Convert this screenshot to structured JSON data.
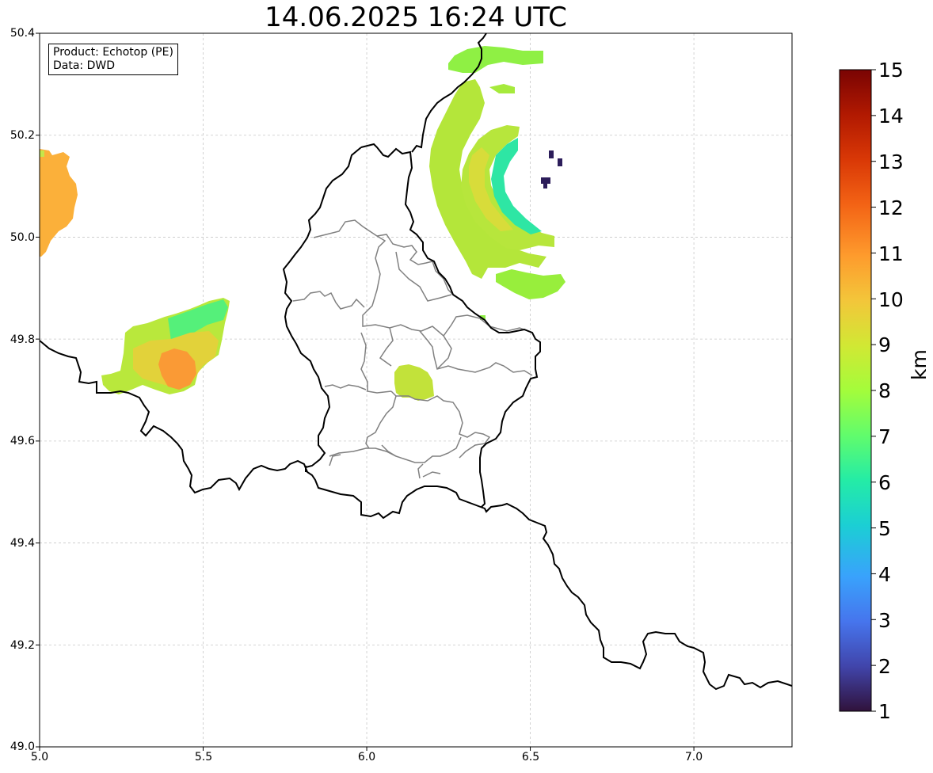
{
  "title": "14.06.2025 16:24 UTC",
  "info": {
    "product": "Product: Echotop (PE)",
    "source": "Data: DWD"
  },
  "map": {
    "lon_range": [
      5.0,
      7.3
    ],
    "lat_range": [
      49.0,
      50.4
    ],
    "x_ticks": [
      "5.0",
      "5.5",
      "6.0",
      "6.5",
      "7.0"
    ],
    "y_ticks": [
      "50.4",
      "50.2",
      "50.0",
      "49.8",
      "49.6",
      "49.4",
      "49.2",
      "49.0"
    ],
    "grid": true
  },
  "colorbar": {
    "label": "km",
    "ticks": [
      "15",
      "14",
      "13",
      "12",
      "11",
      "10",
      "9",
      "8",
      "7",
      "6",
      "5",
      "4",
      "3",
      "2",
      "1"
    ],
    "range": [
      1,
      15
    ],
    "colormap": "turbo"
  },
  "colors": {
    "country_border": "#000000",
    "canton_border": "#808080",
    "grid": "#c8c8c8"
  },
  "echo_areas": [
    {
      "id": "west-edge-cell",
      "value_km": 10.5
    },
    {
      "id": "belgian-cell",
      "value_km": 9
    },
    {
      "id": "belgian-cell-core",
      "value_km": 11
    },
    {
      "id": "central-luxembourg-cell",
      "value_km": 8.5
    },
    {
      "id": "north-arc-outer",
      "value_km": 8.5
    },
    {
      "id": "north-arc-inner",
      "value_km": 6.5
    },
    {
      "id": "northern-band",
      "value_km": 7.5
    },
    {
      "id": "eastern-blip",
      "value_km": 1.5
    }
  ]
}
